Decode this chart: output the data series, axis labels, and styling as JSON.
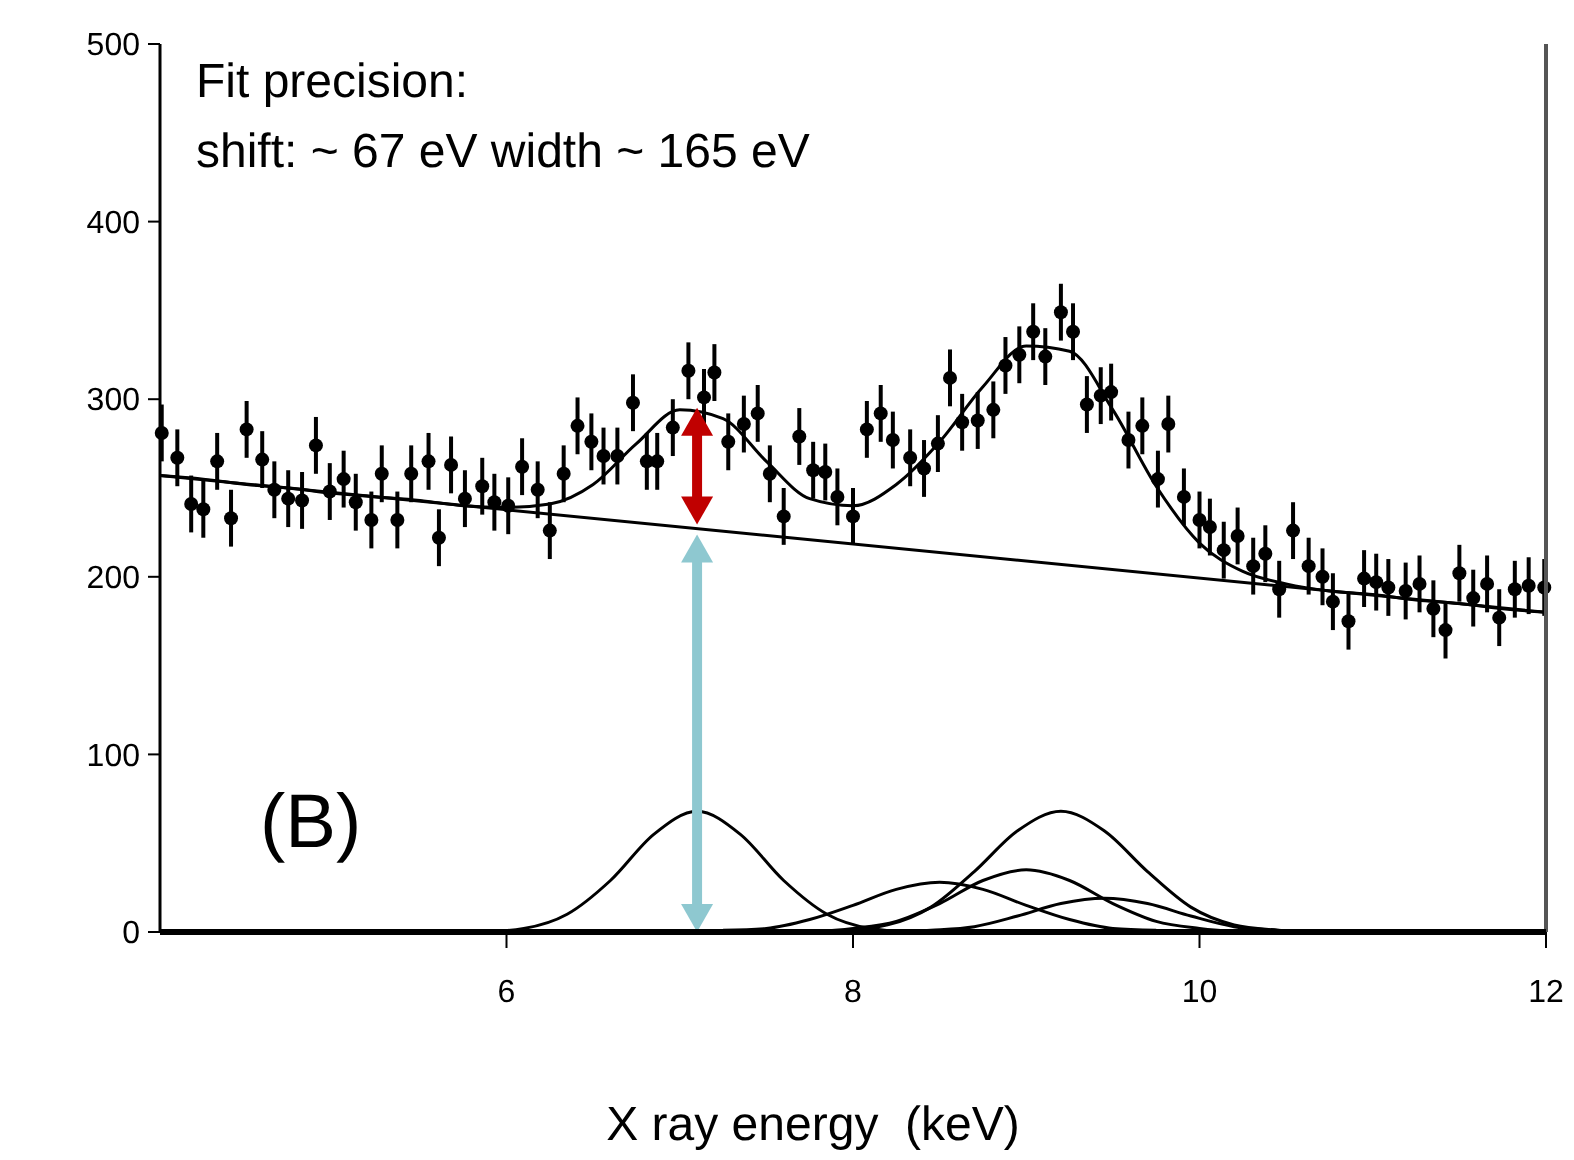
{
  "chart_data": {
    "type": "scatter",
    "xlabel": "X ray energy  (keV)",
    "xlim": [
      4,
      12
    ],
    "xticks": [
      6,
      8,
      10,
      12
    ],
    "ylim": [
      0,
      500
    ],
    "yticks": [
      0,
      100,
      200,
      300,
      400,
      500
    ],
    "grid": false,
    "annotations": [
      "Fit precision:",
      "shift: ~ 67 eV width ~ 165 eV",
      "(B)"
    ],
    "series": [
      {
        "color": "#000000",
        "marker": "circle",
        "errors": [
          16,
          16,
          16,
          16,
          16,
          16,
          16,
          16,
          16,
          16,
          16,
          16,
          16,
          16,
          16,
          16,
          16,
          16,
          16,
          16,
          16,
          16,
          16,
          16,
          16,
          16,
          16,
          16,
          16,
          16,
          16,
          16,
          16,
          16,
          16,
          16,
          16,
          16,
          16,
          16,
          16,
          16,
          16,
          16,
          16,
          16,
          16,
          16,
          16,
          16,
          16,
          16,
          16,
          16,
          16,
          16,
          16,
          16,
          16,
          16,
          16,
          16,
          16,
          16,
          16,
          16,
          16,
          16,
          16,
          16,
          16,
          16,
          16,
          16,
          16,
          16,
          16,
          16,
          16,
          16,
          16,
          16,
          16,
          16,
          16,
          16,
          16,
          16,
          16,
          16,
          16,
          16,
          16,
          16,
          16,
          16,
          16,
          16,
          16,
          16,
          16
        ],
        "x": [
          4.01,
          4.1,
          4.18,
          4.25,
          4.33,
          4.41,
          4.5,
          4.59,
          4.66,
          4.74,
          4.82,
          4.9,
          4.98,
          5.06,
          5.13,
          5.22,
          5.28,
          5.37,
          5.45,
          5.55,
          5.61,
          5.68,
          5.76,
          5.86,
          5.93,
          6.01,
          6.09,
          6.18,
          6.25,
          6.33,
          6.41,
          6.49,
          6.56,
          6.64,
          6.73,
          6.81,
          6.87,
          6.96,
          7.05,
          7.14,
          7.2,
          7.28,
          7.37,
          7.45,
          7.52,
          7.6,
          7.69,
          7.77,
          7.84,
          7.91,
          8.0,
          8.08,
          8.16,
          8.23,
          8.33,
          8.41,
          8.49,
          8.56,
          8.63,
          8.72,
          8.81,
          8.88,
          8.96,
          9.04,
          9.11,
          9.2,
          9.27,
          9.35,
          9.43,
          9.49,
          9.59,
          9.67,
          9.76,
          9.82,
          9.91,
          10.0,
          10.06,
          10.14,
          10.22,
          10.31,
          10.38,
          10.46,
          10.54,
          10.63,
          10.71,
          10.77,
          10.86,
          10.95,
          11.02,
          11.09,
          11.19,
          11.27,
          11.35,
          11.42,
          11.5,
          11.58,
          11.66,
          11.73,
          11.82,
          11.9,
          11.99
        ],
        "values": [
          281,
          267,
          241,
          238,
          265,
          233,
          283,
          266,
          249,
          244,
          243,
          274,
          248,
          255,
          242,
          232,
          258,
          232,
          258,
          265,
          222,
          263,
          244,
          251,
          242,
          240,
          262,
          249,
          226,
          258,
          285,
          276,
          268,
          268,
          298,
          265,
          265,
          284,
          316,
          301,
          315,
          276,
          286,
          292,
          258,
          234,
          279,
          260,
          259,
          245,
          234,
          283,
          292,
          277,
          267,
          261,
          275,
          312,
          287,
          288,
          294,
          319,
          325,
          338,
          324,
          349,
          338,
          297,
          302,
          304,
          277,
          285,
          255,
          286,
          245,
          232,
          228,
          215,
          223,
          206,
          213,
          193,
          226,
          206,
          200,
          186,
          175,
          199,
          197,
          194,
          192,
          196,
          182,
          170,
          202,
          188,
          196,
          177,
          193,
          195,
          194
        ]
      },
      {
        "type": "line",
        "color": "#000000",
        "x": [
          4,
          4.25,
          4.5,
          4.75,
          5,
          5.25,
          5.5,
          5.75,
          6,
          6.25,
          6.5,
          6.75,
          7,
          7.25,
          7.5,
          7.75,
          8,
          8.25,
          8.5,
          8.75,
          9,
          9.25,
          9.5,
          9.75,
          10,
          10.25,
          10.5,
          10.75,
          11,
          11.25,
          11.5,
          11.75,
          12
        ],
        "values": [
          257,
          255,
          252,
          250,
          247,
          245,
          243,
          240,
          239,
          241,
          252,
          275,
          294,
          289,
          265,
          244,
          240,
          252,
          276,
          307,
          330,
          327,
          294,
          251,
          219,
          203,
          196,
          192,
          190,
          187,
          185,
          182,
          180
        ]
      },
      {
        "type": "line",
        "color": "#000000",
        "x": [
          4,
          12
        ],
        "values": [
          257,
          180
        ]
      },
      {
        "type": "line",
        "color": "#000000",
        "x": [
          4.9,
          5.85,
          6.1,
          6.35,
          6.6,
          6.85,
          7.1,
          7.35,
          7.6,
          7.85,
          8.1,
          8.35,
          9.0
        ],
        "values": [
          0,
          0,
          2,
          10,
          29,
          55,
          68,
          55,
          29,
          10,
          2,
          0,
          0
        ]
      },
      {
        "type": "line",
        "color": "#000000",
        "x": [
          7.25,
          7.5,
          7.75,
          8.0,
          8.25,
          8.5,
          8.75,
          9.0,
          9.25,
          9.5,
          9.75
        ],
        "values": [
          1,
          2,
          7,
          15,
          24,
          28,
          24,
          15,
          7,
          2,
          1
        ]
      },
      {
        "type": "line",
        "color": "#000000",
        "x": [
          7.75,
          8.0,
          8.25,
          8.5,
          8.75,
          9.0,
          9.25,
          9.5,
          9.75,
          10,
          10.25
        ],
        "values": [
          0,
          2,
          6,
          16,
          29,
          35,
          29,
          16,
          6,
          2,
          0
        ]
      },
      {
        "type": "line",
        "color": "#000000",
        "x": [
          7.95,
          8.2,
          8.45,
          8.7,
          8.95,
          9.2,
          9.45,
          9.7,
          9.95,
          10.2,
          10.45,
          10.6
        ],
        "values": [
          1,
          4,
          14,
          34,
          57,
          68,
          57,
          34,
          14,
          4,
          1,
          0
        ]
      },
      {
        "type": "line",
        "color": "#000000",
        "x": [
          8.2,
          8.45,
          8.7,
          8.95,
          9.2,
          9.45,
          9.7,
          9.95,
          10.2,
          10.45,
          10.7
        ],
        "values": [
          0,
          1,
          3,
          9,
          16,
          19,
          16,
          9,
          3,
          1,
          0
        ]
      }
    ]
  }
}
